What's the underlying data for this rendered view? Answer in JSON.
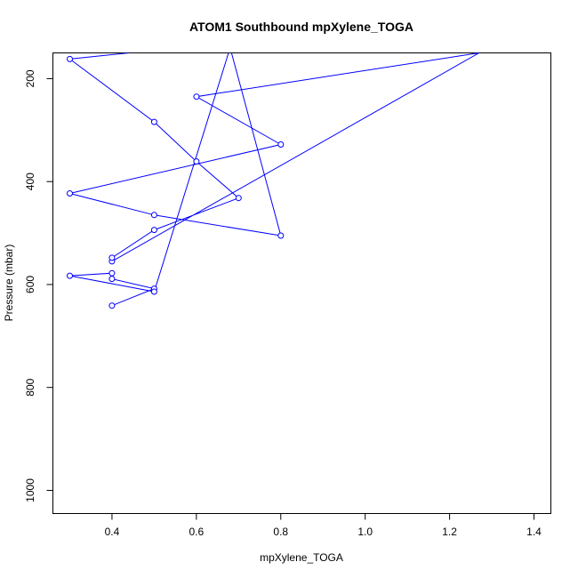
{
  "chart_data": {
    "type": "line",
    "title": "ATOM1 Southbound mpXylene_TOGA",
    "xlabel": "mpXylene_TOGA",
    "ylabel": "Pressure (mbar)",
    "xlim": [
      0.26,
      1.44
    ],
    "ylim": [
      1045,
      150
    ],
    "y_reversed": true,
    "xticks": [
      0.4,
      0.6,
      0.8,
      1.0,
      1.2,
      1.4
    ],
    "xtick_labels": [
      "0.4",
      "0.6",
      "0.8",
      "1.0",
      "1.2",
      "1.4"
    ],
    "yticks": [
      200,
      400,
      600,
      800,
      1000
    ],
    "ytick_labels": [
      "200",
      "400",
      "600",
      "800",
      "1000"
    ],
    "grid": false,
    "series": [
      {
        "color": "#0000ff",
        "points": [
          {
            "x": 0.4,
            "y": 641
          },
          {
            "x": 0.5,
            "y": 608
          },
          {
            "x": 0.4,
            "y": 589
          },
          {
            "x": 0.4,
            "y": 578
          },
          {
            "x": 0.3,
            "y": 583
          },
          {
            "x": 0.5,
            "y": 614
          },
          {
            "x": 0.68,
            "y": 140
          },
          {
            "x": 0.8,
            "y": 505
          },
          {
            "x": 0.5,
            "y": 465
          },
          {
            "x": 0.3,
            "y": 423
          },
          {
            "x": 0.8,
            "y": 328
          },
          {
            "x": 0.6,
            "y": 235
          },
          {
            "x": 1.27,
            "y": 150
          },
          {
            "x": 0.4,
            "y": 555
          },
          {
            "x": 0.4,
            "y": 548
          },
          {
            "x": 0.5,
            "y": 494
          },
          {
            "x": 0.7,
            "y": 432
          },
          {
            "x": 0.6,
            "y": 361
          },
          {
            "x": 0.5,
            "y": 284
          },
          {
            "x": 0.3,
            "y": 162
          },
          {
            "x": 0.44,
            "y": 150
          }
        ],
        "markers": [
          {
            "x": 0.4,
            "y": 641
          },
          {
            "x": 0.5,
            "y": 608
          },
          {
            "x": 0.4,
            "y": 589
          },
          {
            "x": 0.4,
            "y": 578
          },
          {
            "x": 0.3,
            "y": 583
          },
          {
            "x": 0.5,
            "y": 614
          },
          {
            "x": 0.8,
            "y": 505
          },
          {
            "x": 0.5,
            "y": 465
          },
          {
            "x": 0.3,
            "y": 423
          },
          {
            "x": 0.8,
            "y": 328
          },
          {
            "x": 0.6,
            "y": 235
          },
          {
            "x": 0.4,
            "y": 555
          },
          {
            "x": 0.4,
            "y": 548
          },
          {
            "x": 0.5,
            "y": 494
          },
          {
            "x": 0.7,
            "y": 432
          },
          {
            "x": 0.6,
            "y": 361
          },
          {
            "x": 0.5,
            "y": 284
          },
          {
            "x": 0.3,
            "y": 162
          }
        ]
      }
    ]
  }
}
